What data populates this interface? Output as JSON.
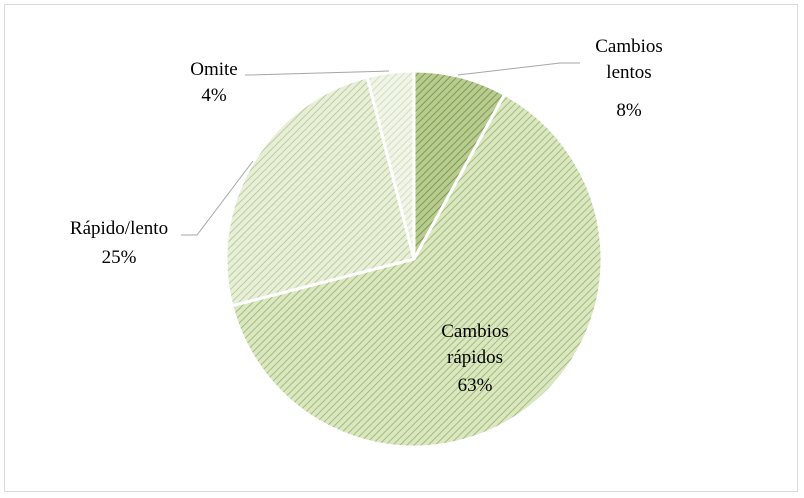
{
  "chart_data": {
    "type": "pie",
    "title": "",
    "slices": [
      {
        "name_lines": [
          "Cambios",
          "lentos"
        ],
        "value_label": "8%",
        "value": 8,
        "color": "#a4ba7c"
      },
      {
        "name_lines": [
          "Cambios",
          "rápidos"
        ],
        "value_label": "63%",
        "value": 63,
        "color": "#c3d69b"
      },
      {
        "name_lines": [
          "Rápido/lento"
        ],
        "value_label": "25%",
        "value": 25,
        "color": "#d9e5c1"
      },
      {
        "name_lines": [
          "Omite"
        ],
        "value_label": "4%",
        "value": 4,
        "color": "#e6eed8"
      }
    ],
    "legend": "none",
    "label_position": "outside-with-leader-lines"
  }
}
